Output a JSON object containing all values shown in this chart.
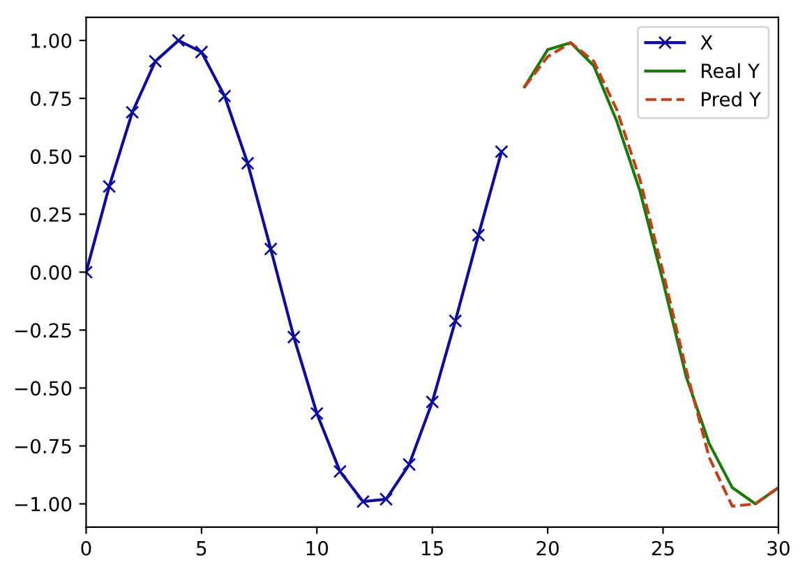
{
  "chart_data": {
    "type": "line",
    "xlim": [
      0,
      30
    ],
    "ylim": [
      -1.1,
      1.1
    ],
    "xticks": [
      0,
      5,
      10,
      15,
      20,
      25,
      30
    ],
    "yticks": [
      {
        "value": -1,
        "label": "−1.00"
      },
      {
        "value": -0.75,
        "label": "−0.75"
      },
      {
        "value": -0.5,
        "label": "−0.50"
      },
      {
        "value": -0.25,
        "label": "−0.25"
      },
      {
        "value": 0,
        "label": "0.00"
      },
      {
        "value": 0.25,
        "label": "0.25"
      },
      {
        "value": 0.5,
        "label": "0.50"
      },
      {
        "value": 0.75,
        "label": "0.75"
      },
      {
        "value": 1,
        "label": "1.00"
      }
    ],
    "grid": false,
    "legend": "top right",
    "series": [
      {
        "name": "X",
        "color": "#0b0ba0",
        "marker": "cross",
        "line_style": "solid",
        "x": [
          0,
          1,
          2,
          3,
          4,
          5,
          6,
          7,
          8,
          9,
          10,
          11,
          12,
          13,
          14,
          15,
          16,
          17,
          18
        ],
        "values": [
          0,
          0.37,
          0.69,
          0.91,
          1.0,
          0.95,
          0.76,
          0.47,
          0.1,
          -0.28,
          -0.61,
          -0.86,
          -0.99,
          -0.98,
          -0.83,
          -0.56,
          -0.21,
          0.16,
          0.52
        ]
      },
      {
        "name": "Real Y",
        "color": "#1a7a0a",
        "marker": "none",
        "line_style": "solid",
        "x": [
          19,
          20,
          21,
          22,
          23,
          24,
          25,
          26,
          27,
          28,
          29,
          30
        ],
        "values": [
          0.8,
          0.96,
          0.99,
          0.89,
          0.65,
          0.35,
          -0.04,
          -0.45,
          -0.74,
          -0.93,
          -1.0,
          -0.93
        ]
      },
      {
        "name": "Pred Y",
        "color": "#c0401a",
        "marker": "none",
        "line_style": "dashed",
        "x": [
          19,
          20,
          21,
          22,
          23,
          24,
          25,
          26,
          27,
          28,
          29,
          30
        ],
        "values": [
          0.8,
          0.93,
          0.99,
          0.91,
          0.7,
          0.4,
          0.0,
          -0.42,
          -0.8,
          -1.01,
          -1.0,
          -0.93
        ]
      }
    ]
  }
}
